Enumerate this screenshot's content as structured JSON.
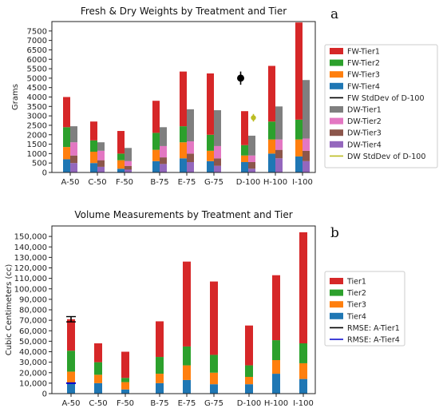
{
  "panel_labels": [
    "a",
    "b"
  ],
  "chart_data": [
    {
      "type": "bar",
      "title": "Fresh & Dry Weights by Treatment and Tier",
      "ylabel": "Grams",
      "xlabel": "",
      "ylim": [
        0,
        8000
      ],
      "yticks": [
        0,
        500,
        1000,
        1500,
        2000,
        2500,
        3000,
        3500,
        4000,
        4500,
        5000,
        5500,
        6000,
        6500,
        7000,
        7500
      ],
      "categories": [
        "A-50",
        "C-50",
        "F-50",
        "B-75",
        "E-75",
        "G-75",
        "D-100",
        "H-100",
        "I-100"
      ],
      "stacked": true,
      "groups": [
        {
          "name": "FW",
          "series": [
            {
              "name": "FW-Tier4",
              "color": "#1f77b4",
              "values": [
                700,
                500,
                200,
                600,
                750,
                600,
                550,
                1000,
                850
              ]
            },
            {
              "name": "FW-Tier3",
              "color": "#ff7f0e",
              "values": [
                650,
                600,
                450,
                600,
                850,
                550,
                350,
                750,
                900
              ]
            },
            {
              "name": "FW-Tier2",
              "color": "#2ca02c",
              "values": [
                1050,
                600,
                350,
                900,
                850,
                850,
                550,
                950,
                1050
              ]
            },
            {
              "name": "FW-Tier1",
              "color": "#d62728",
              "values": [
                1600,
                1000,
                1200,
                1700,
                2900,
                3250,
                1800,
                2950,
                5150
              ]
            }
          ]
        },
        {
          "name": "DW",
          "series": [
            {
              "name": "DW-Tier4",
              "color": "#9467bd",
              "values": [
                500,
                300,
                150,
                450,
                550,
                350,
                200,
                750,
                600
              ]
            },
            {
              "name": "DW-Tier3",
              "color": "#8c564b",
              "values": [
                400,
                350,
                200,
                350,
                450,
                400,
                350,
                450,
                550
              ]
            },
            {
              "name": "DW-Tier2",
              "color": "#e377c2",
              "values": [
                700,
                500,
                250,
                600,
                650,
                650,
                350,
                550,
                650
              ]
            },
            {
              "name": "DW-Tier1",
              "color": "#7f7f7f",
              "values": [
                850,
                450,
                700,
                1000,
                1700,
                1900,
                1050,
                1750,
                3100
              ]
            }
          ]
        }
      ],
      "errorbars": [
        {
          "name": "FW StdDev of D-100",
          "color": "#000000",
          "category": "D-100",
          "group": "FW",
          "value": 5000,
          "error": 350
        },
        {
          "name": "DW StdDev of D-100",
          "color": "#bcbd22",
          "category": "D-100",
          "group": "DW",
          "value": 2900,
          "error": 200
        }
      ],
      "legend": {
        "placement": "outside-right",
        "entries": [
          {
            "label": "FW-Tier1",
            "color": "#d62728",
            "kind": "patch"
          },
          {
            "label": "FW-Tier2",
            "color": "#2ca02c",
            "kind": "patch"
          },
          {
            "label": "FW-Tier3",
            "color": "#ff7f0e",
            "kind": "patch"
          },
          {
            "label": "FW-Tier4",
            "color": "#1f77b4",
            "kind": "patch"
          },
          {
            "label": "FW StdDev of D-100",
            "color": "#000000",
            "kind": "line"
          },
          {
            "label": "DW-Tier1",
            "color": "#7f7f7f",
            "kind": "patch"
          },
          {
            "label": "DW-Tier2",
            "color": "#e377c2",
            "kind": "patch"
          },
          {
            "label": "DW-Tier3",
            "color": "#8c564b",
            "kind": "patch"
          },
          {
            "label": "DW-Tier4",
            "color": "#9467bd",
            "kind": "patch"
          },
          {
            "label": "DW StdDev of D-100",
            "color": "#bcbd22",
            "kind": "line"
          }
        ]
      },
      "grid": false
    },
    {
      "type": "bar",
      "title": "Volume Measurements by Treatment and Tier",
      "ylabel": "Cubic Centimeters (cc)",
      "xlabel": "",
      "ylim": [
        0,
        160000
      ],
      "yticks": [
        0,
        10000,
        20000,
        30000,
        40000,
        50000,
        60000,
        70000,
        80000,
        90000,
        100000,
        110000,
        120000,
        130000,
        140000,
        150000
      ],
      "ytick_labels": [
        "0",
        "10,000",
        "20,000",
        "30,000",
        "40,000",
        "50,000",
        "60,000",
        "70,000",
        "80,000",
        "90,000",
        "100,000",
        "110,000",
        "120,000",
        "130,000",
        "140,000",
        "150,000"
      ],
      "categories": [
        "A-50",
        "C-50",
        "F-50",
        "B-75",
        "E-75",
        "G-75",
        "D-100",
        "H-100",
        "I-100"
      ],
      "stacked": true,
      "series": [
        {
          "name": "Tier4",
          "color": "#1f77b4",
          "values": [
            10000,
            10000,
            4000,
            10000,
            13000,
            9000,
            9000,
            19000,
            14000
          ]
        },
        {
          "name": "Tier3",
          "color": "#ff7f0e",
          "values": [
            11000,
            8000,
            7000,
            9000,
            14000,
            11000,
            7000,
            13000,
            15000
          ]
        },
        {
          "name": "Tier2",
          "color": "#2ca02c",
          "values": [
            20000,
            12000,
            4000,
            16000,
            18000,
            17000,
            11000,
            19000,
            19000
          ]
        },
        {
          "name": "Tier1",
          "color": "#d62728",
          "values": [
            30000,
            18000,
            25000,
            34000,
            81000,
            70000,
            38000,
            62000,
            106000
          ]
        }
      ],
      "errorbars": [
        {
          "name": "RMSE: A-Tier1",
          "color": "#000000",
          "category": "A-50",
          "value": 71000,
          "error": 2500
        },
        {
          "name": "RMSE: A-Tier4",
          "color": "#0000cc",
          "category": "A-50",
          "value": 10000,
          "error": 0
        }
      ],
      "legend": {
        "placement": "outside-right",
        "entries": [
          {
            "label": "Tier1",
            "color": "#d62728",
            "kind": "patch"
          },
          {
            "label": "Tier2",
            "color": "#2ca02c",
            "kind": "patch"
          },
          {
            "label": "Tier3",
            "color": "#ff7f0e",
            "kind": "patch"
          },
          {
            "label": "Tier4",
            "color": "#1f77b4",
            "kind": "patch"
          },
          {
            "label": "RMSE: A-Tier1",
            "color": "#000000",
            "kind": "line"
          },
          {
            "label": "RMSE: A-Tier4",
            "color": "#0000cc",
            "kind": "line"
          }
        ]
      },
      "grid": false
    }
  ]
}
